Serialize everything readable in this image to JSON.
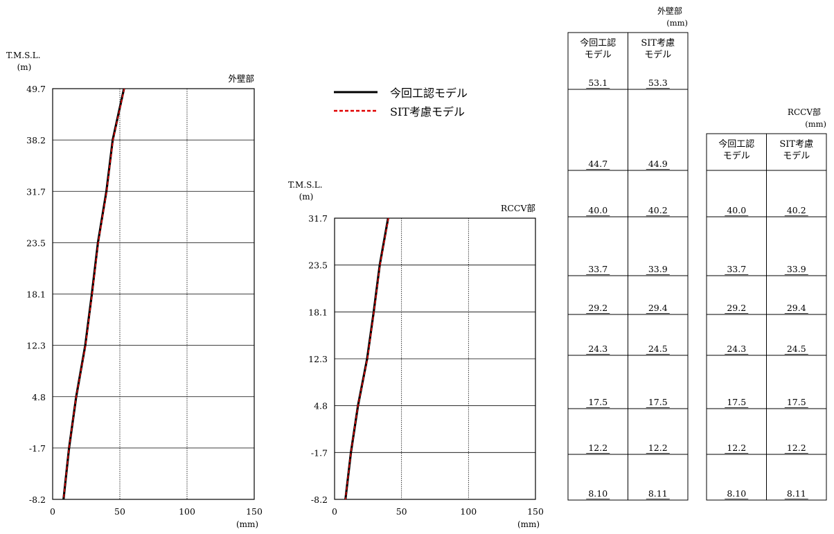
{
  "legend": [
    {
      "label": "今回工認モデル",
      "color": "#000000",
      "style": "solid"
    },
    {
      "label": "SIT考慮モデル",
      "color": "#e00000",
      "style": "dashed"
    }
  ],
  "chart_data": [
    {
      "type": "line",
      "title": "外壁部",
      "ylabel": "T.M.S.L.",
      "yunit": "(m)",
      "xunit": "(mm)",
      "xlim": [
        0,
        150
      ],
      "xticks": [
        "0",
        "50",
        "100",
        "150"
      ],
      "xtick_values": [
        0,
        50,
        100,
        150
      ],
      "y_levels": [
        "49.7",
        "38.2",
        "31.7",
        "23.5",
        "18.1",
        "12.3",
        "4.8",
        "-1.7",
        "-8.2"
      ],
      "y_values": [
        49.7,
        38.2,
        31.7,
        23.5,
        18.1,
        12.3,
        4.8,
        -1.7,
        -8.2
      ],
      "series": [
        {
          "name": "今回工認モデル",
          "x": [
            53.1,
            44.7,
            40.0,
            33.7,
            29.2,
            24.3,
            17.5,
            12.2,
            8.1
          ]
        },
        {
          "name": "SIT考慮モデル",
          "x": [
            53.3,
            44.9,
            40.2,
            33.9,
            29.4,
            24.5,
            17.5,
            12.2,
            8.11
          ]
        }
      ]
    },
    {
      "type": "line",
      "title": "RCCV部",
      "ylabel": "T.M.S.L.",
      "yunit": "(m)",
      "xunit": "(mm)",
      "xlim": [
        0,
        150
      ],
      "xticks": [
        "0",
        "50",
        "100",
        "150"
      ],
      "xtick_values": [
        0,
        50,
        100,
        150
      ],
      "y_levels": [
        "31.7",
        "23.5",
        "18.1",
        "12.3",
        "4.8",
        "-1.7",
        "-8.2"
      ],
      "y_values": [
        31.7,
        23.5,
        18.1,
        12.3,
        4.8,
        -1.7,
        -8.2
      ],
      "series": [
        {
          "name": "今回工認モデル",
          "x": [
            40.0,
            33.7,
            29.2,
            24.3,
            17.5,
            12.2,
            8.1
          ]
        },
        {
          "name": "SIT考慮モデル",
          "x": [
            40.2,
            33.9,
            29.4,
            24.5,
            17.5,
            12.2,
            8.11
          ]
        }
      ]
    },
    {
      "type": "table",
      "title": "外壁部",
      "unit": "(mm)",
      "columns": [
        [
          "今回工認",
          "モデル"
        ],
        [
          "SIT考慮",
          "モデル"
        ]
      ],
      "rows": [
        [
          "53.1",
          "53.3"
        ],
        [
          "44.7",
          "44.9"
        ],
        [
          "40.0",
          "40.2"
        ],
        [
          "33.7",
          "33.9"
        ],
        [
          "29.2",
          "29.4"
        ],
        [
          "24.3",
          "24.5"
        ],
        [
          "17.5",
          "17.5"
        ],
        [
          "12.2",
          "12.2"
        ],
        [
          "8.10",
          "8.11"
        ]
      ]
    },
    {
      "type": "table",
      "title": "RCCV部",
      "unit": "(mm)",
      "columns": [
        [
          "今回工認",
          "モデル"
        ],
        [
          "SIT考慮",
          "モデル"
        ]
      ],
      "rows": [
        [
          "40.0",
          "40.2"
        ],
        [
          "33.7",
          "33.9"
        ],
        [
          "29.2",
          "29.4"
        ],
        [
          "24.3",
          "24.5"
        ],
        [
          "17.5",
          "17.5"
        ],
        [
          "12.2",
          "12.2"
        ],
        [
          "8.10",
          "8.11"
        ]
      ]
    }
  ]
}
